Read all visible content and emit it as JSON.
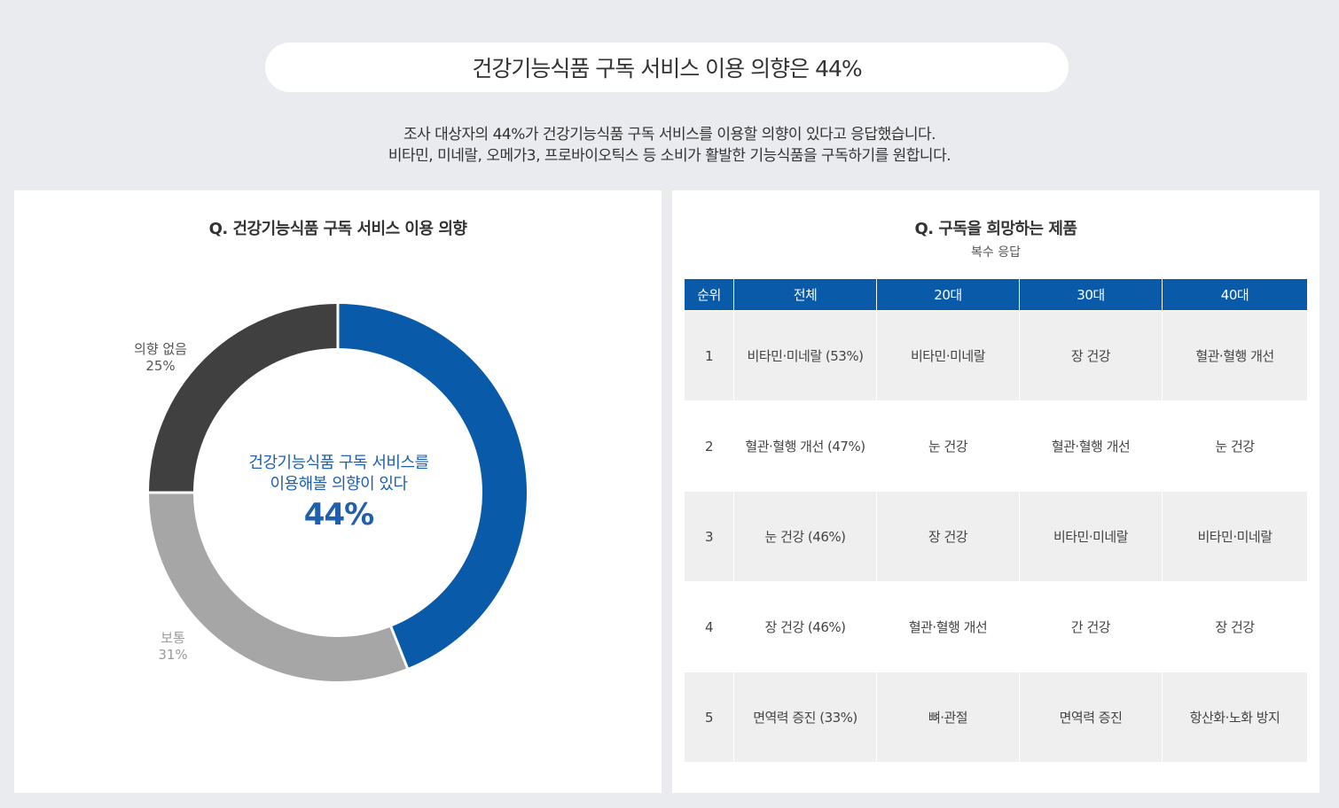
{
  "header": {
    "title": "건강기능식품 구독 서비스 이용 의향은 44%",
    "subtitle_line1": "조사 대상자의 44%가 건강기능식품 구독 서비스를 이용할 의향이 있다고 응답했습니다.",
    "subtitle_line2": "비타민, 미네랄, 오메가3, 프로바이오틱스 등 소비가 활발한 기능식품을 구독하기를 원합니다."
  },
  "left_panel": {
    "title": "Q. 건강기능식품 구독 서비스 이용 의향",
    "center_line1": "건강기능식품 구독 서비스를",
    "center_line2": "이용해볼 의향이 있다",
    "center_value": "44%",
    "label_none_name": "의향 없음",
    "label_none_value": "25%",
    "label_normal_name": "보통",
    "label_normal_value": "31%"
  },
  "chart_data": {
    "type": "pie",
    "title": "Q. 건강기능식품 구독 서비스 이용 의향",
    "categories": [
      "이용해볼 의향이 있다",
      "보통",
      "의향 없음"
    ],
    "values": [
      44,
      31,
      25
    ],
    "unit": "%",
    "colors": [
      "#0a5aaa",
      "#a6a6a6",
      "#404040"
    ]
  },
  "right_panel": {
    "title": "Q. 구독을 희망하는 제품",
    "subtitle": "복수 응답",
    "columns": [
      "순위",
      "전체",
      "20대",
      "30대",
      "40대"
    ],
    "rows": [
      [
        "1",
        "비타민·미네랄 (53%)",
        "비타민·미네랄",
        "장 건강",
        "혈관·혈행 개선"
      ],
      [
        "2",
        "혈관·혈행 개선 (47%)",
        "눈 건강",
        "혈관·혈행 개선",
        "눈 건강"
      ],
      [
        "3",
        "눈 건강 (46%)",
        "장 건강",
        "비타민·미네랄",
        "비타민·미네랄"
      ],
      [
        "4",
        "장 건강 (46%)",
        "혈관·혈행 개선",
        "간 건강",
        "장 건강"
      ],
      [
        "5",
        "면역력 증진 (33%)",
        "뼈·관절",
        "면역력 증진",
        "항산화·노화 방지"
      ]
    ]
  }
}
